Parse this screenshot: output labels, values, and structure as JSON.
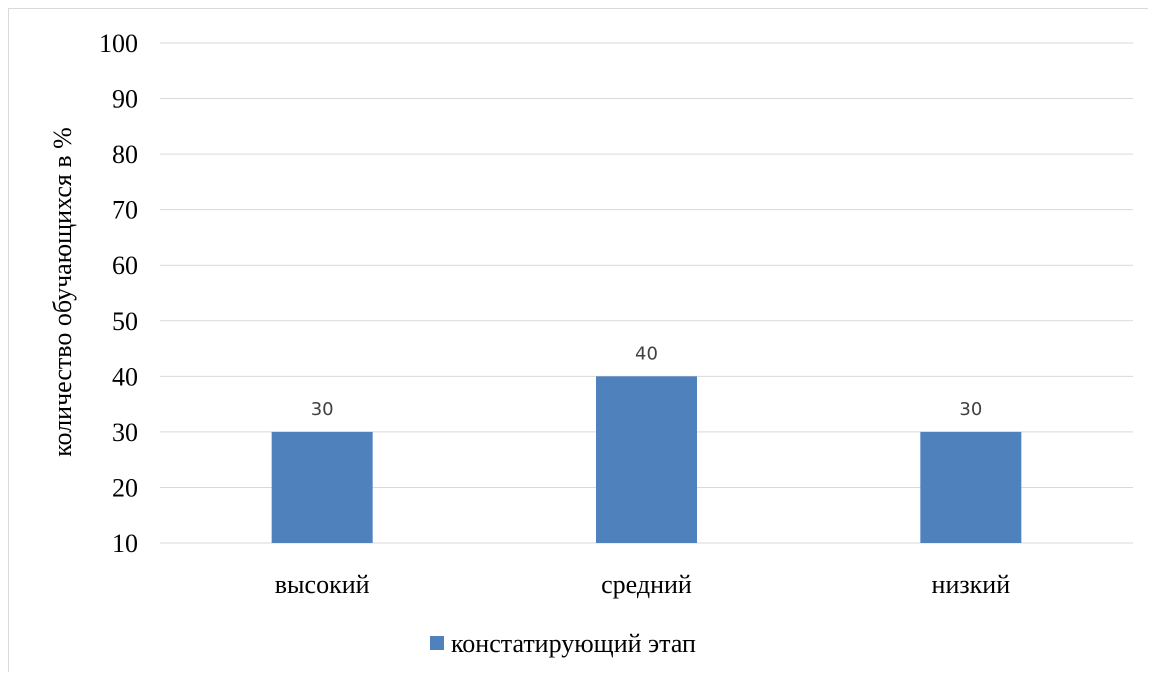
{
  "chart_data": {
    "type": "bar",
    "categories": [
      "высокий",
      "средний",
      "низкий"
    ],
    "series": [
      {
        "name": "констатирующий этап",
        "values": [
          30,
          40,
          30
        ],
        "color": "#4f81bd"
      }
    ],
    "data_labels": [
      "30",
      "40",
      "30"
    ],
    "xlabel": "",
    "ylabel": "количество обучающихся в %",
    "ylim": [
      10,
      100
    ],
    "yticks": [
      10,
      20,
      30,
      40,
      50,
      60,
      70,
      80,
      90,
      100
    ],
    "grid": true,
    "gridline_color": "#d9d9d9",
    "legend_position": "bottom"
  }
}
